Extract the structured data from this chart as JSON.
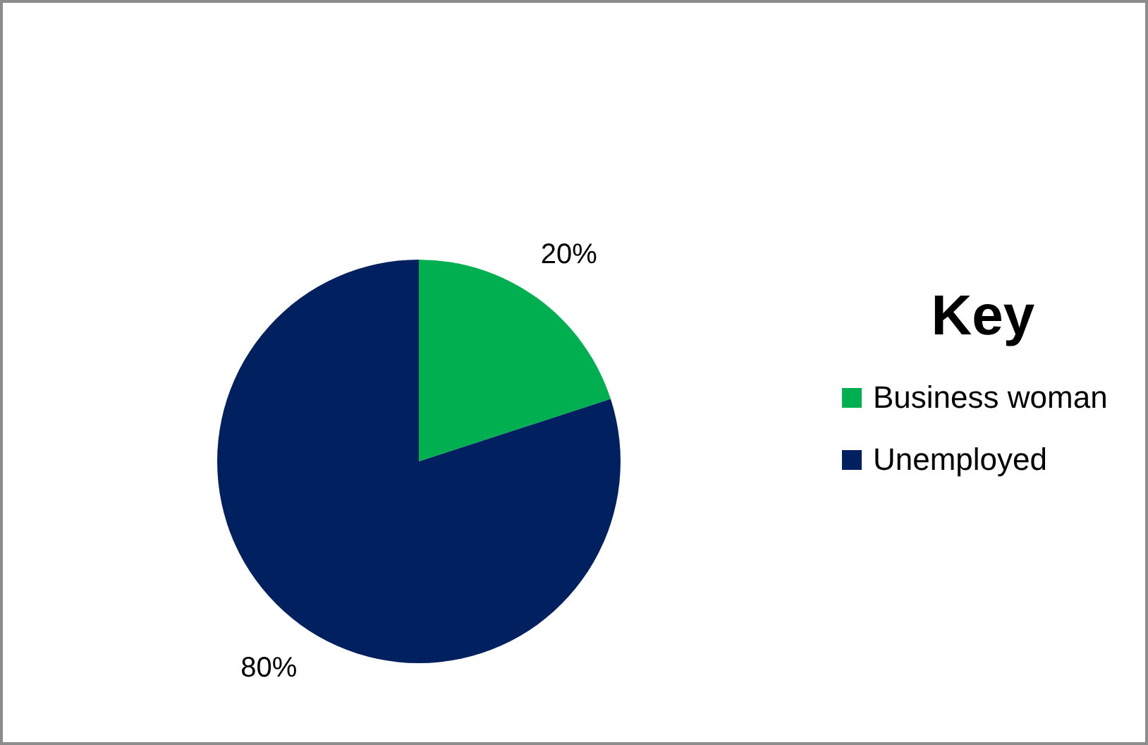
{
  "chart_data": {
    "type": "pie",
    "legend_title": "Key",
    "legend": "right",
    "categories": [
      "Business woman",
      "Unemployed"
    ],
    "values": [
      20,
      80
    ],
    "colors": [
      "#00b050",
      "#002060"
    ],
    "value_labels": [
      "20%",
      "80%"
    ]
  }
}
